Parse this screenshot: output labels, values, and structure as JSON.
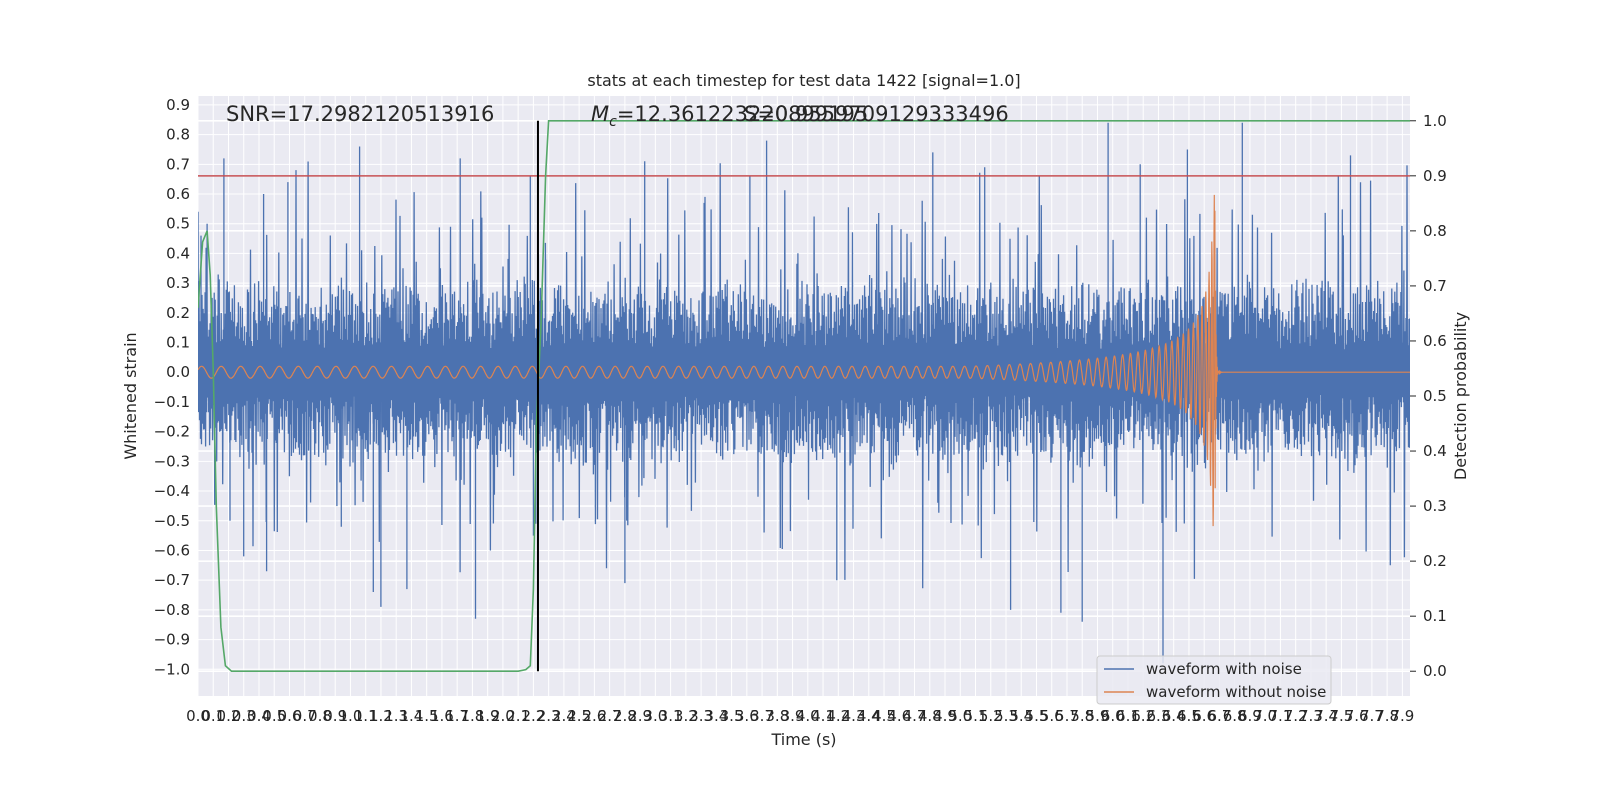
{
  "chart_data": {
    "type": "line",
    "title": "stats at each timestep for test data 1422 [signal=1.0]",
    "xlabel": "Time (s)",
    "ylabel_left": "Whitened strain",
    "ylabel_right": "Detection probability",
    "xlim": [
      0.0,
      7.95
    ],
    "ylim_left": [
      -1.09,
      0.93
    ],
    "ylim_right": [
      -0.045,
      1.045
    ],
    "grid": true,
    "legend_position": "bottom-right",
    "x_tick_labels": [
      "0.0",
      "0.1",
      "0.2",
      "0.3",
      "0.4",
      "0.5",
      "0.6",
      "0.7",
      "0.8",
      "0.9",
      "1.0",
      "1.1",
      "1.2",
      "1.3",
      "1.4",
      "1.5",
      "1.6",
      "1.7",
      "1.8",
      "1.9",
      "2.0",
      "2.1",
      "2.2",
      "2.3",
      "2.4",
      "2.5",
      "2.6",
      "2.7",
      "2.8",
      "2.9",
      "3.0",
      "3.1",
      "3.2",
      "3.3",
      "3.4",
      "3.5",
      "3.6",
      "3.7",
      "3.8",
      "3.9",
      "4.0",
      "4.1",
      "4.2",
      "4.3",
      "4.4",
      "4.5",
      "4.6",
      "4.7",
      "4.8",
      "4.9",
      "5.0",
      "5.1",
      "5.2",
      "5.3",
      "5.4",
      "5.5",
      "5.6",
      "5.7",
      "5.8",
      "5.9",
      "6.0",
      "6.1",
      "6.2",
      "6.3",
      "6.4",
      "6.5",
      "6.6",
      "6.7",
      "6.8",
      "6.9",
      "7.0",
      "7.1",
      "7.2",
      "7.3",
      "7.4",
      "7.5",
      "7.6",
      "7.7",
      "7.8",
      "7.9"
    ],
    "y_left_ticks": [
      0.9,
      0.8,
      0.7,
      0.6,
      0.5,
      0.4,
      0.3,
      0.2,
      0.1,
      0.0,
      -0.1,
      -0.2,
      -0.3,
      -0.4,
      -0.5,
      -0.6,
      -0.7,
      -0.8,
      -0.9,
      -1.0
    ],
    "y_left_tick_labels": [
      "0.9",
      "0.8",
      "0.7",
      "0.6",
      "0.5",
      "0.4",
      "0.3",
      "0.2",
      "0.1",
      "0.0",
      "−0.1",
      "−0.2",
      "−0.3",
      "−0.4",
      "−0.5",
      "−0.6",
      "−0.7",
      "−0.8",
      "−0.9",
      "−1.0"
    ],
    "y_right_ticks": [
      1.0,
      0.9,
      0.8,
      0.7,
      0.6,
      0.5,
      0.4,
      0.3,
      0.2,
      0.1,
      0.0
    ],
    "y_right_tick_labels": [
      "1.0",
      "0.9",
      "0.8",
      "0.7",
      "0.6",
      "0.5",
      "0.4",
      "0.3",
      "0.2",
      "0.1",
      "0.0"
    ],
    "annotations": {
      "snr": "SNR=17.2982120513916",
      "mc_prefix": "M",
      "mc_sub": "c",
      "mc_value": "=12.361223220899195",
      "mc_overlap": "S=0.9559709129333496"
    },
    "threshold_line": {
      "axis": "right",
      "y": 0.9,
      "color": "#c44e52"
    },
    "vertical_marker": {
      "x": 2.23,
      "color": "#000000"
    },
    "series": [
      {
        "name": "waveform with noise",
        "axis": "left",
        "color": "#4c72b0",
        "envelope_note": "dense noise trace; representative peak samples (x, y)",
        "peaks": [
          [
            0.02,
            0.46
          ],
          [
            0.06,
            0.5
          ],
          [
            0.17,
            0.72
          ],
          [
            0.21,
            -0.5
          ],
          [
            0.3,
            -0.62
          ],
          [
            0.43,
            0.6
          ],
          [
            0.45,
            -0.67
          ],
          [
            0.59,
            0.64
          ],
          [
            0.94,
            -0.52
          ],
          [
            1.06,
            0.76
          ],
          [
            1.15,
            -0.74
          ],
          [
            1.2,
            -0.79
          ],
          [
            1.37,
            -0.73
          ],
          [
            1.72,
            0.72
          ],
          [
            1.82,
            -0.83
          ],
          [
            2.18,
            0.66
          ],
          [
            2.2,
            -0.55
          ],
          [
            2.28,
            0.38
          ],
          [
            2.8,
            -0.71
          ],
          [
            2.93,
            0.71
          ],
          [
            3.32,
            0.57
          ],
          [
            3.62,
            0.66
          ],
          [
            3.73,
            0.78
          ],
          [
            4.19,
            -0.7
          ],
          [
            4.82,
            0.74
          ],
          [
            5.16,
            0.69
          ],
          [
            5.33,
            -0.8
          ],
          [
            5.66,
            -0.81
          ],
          [
            5.8,
            -0.84
          ],
          [
            5.97,
            0.84
          ],
          [
            6.18,
            0.7
          ],
          [
            6.33,
            -0.98
          ],
          [
            6.49,
            0.75
          ],
          [
            6.85,
            0.84
          ],
          [
            7.56,
            0.73
          ],
          [
            7.93,
            0.46
          ]
        ]
      },
      {
        "name": "waveform without noise",
        "axis": "left",
        "color": "#dd8452",
        "description": "chirp: amplitude grows until merger at ~6.67 s then rings down",
        "merger_time": 6.67,
        "peak_amplitude": [
          0.61,
          -0.5
        ],
        "early_amplitude": 0.02
      },
      {
        "name": "detection probability",
        "axis": "right",
        "color": "#55a868",
        "x": [
          0.0,
          0.03,
          0.06,
          0.08,
          0.1,
          0.12,
          0.15,
          0.18,
          0.22,
          0.25,
          0.5,
          1.0,
          1.5,
          2.0,
          2.1,
          2.15,
          2.18,
          2.2,
          2.22,
          2.25,
          2.28,
          2.3,
          2.32,
          2.35,
          2.5,
          3.0,
          4.0,
          5.0,
          6.0,
          7.0,
          7.95
        ],
        "y": [
          0.66,
          0.78,
          0.8,
          0.72,
          0.55,
          0.3,
          0.08,
          0.01,
          0.0,
          0.0,
          0.0,
          0.0,
          0.0,
          0.0,
          0.0,
          0.003,
          0.01,
          0.15,
          0.45,
          0.63,
          0.9,
          1.0,
          1.0,
          1.0,
          1.0,
          1.0,
          1.0,
          1.0,
          1.0,
          1.0,
          1.0
        ]
      }
    ]
  }
}
